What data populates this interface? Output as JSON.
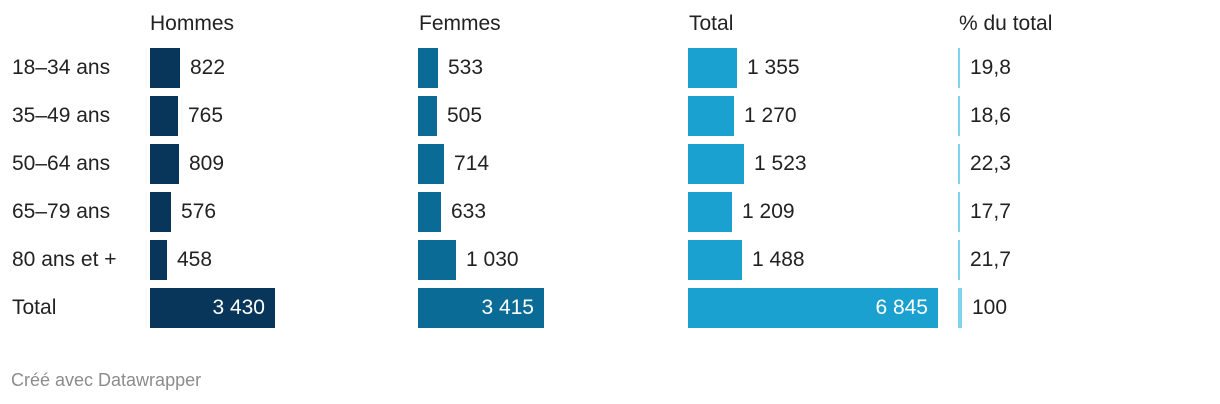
{
  "chart_data": {
    "type": "table",
    "columns": [
      {
        "header": "Hommes",
        "color": "#08365b"
      },
      {
        "header": "Femmes",
        "color": "#0a6c96"
      },
      {
        "header": "Total",
        "color": "#1ba1cf"
      },
      {
        "header": "% du total",
        "color": "#7dd3f0"
      }
    ],
    "rows": [
      {
        "label": "18–34 ans",
        "values": [
          822,
          533,
          1355,
          19.8
        ],
        "display": [
          "822",
          "533",
          "1 355",
          "19,8"
        ]
      },
      {
        "label": "35–49 ans",
        "values": [
          765,
          505,
          1270,
          18.6
        ],
        "display": [
          "765",
          "505",
          "1 270",
          "18,6"
        ]
      },
      {
        "label": "50–64 ans",
        "values": [
          809,
          714,
          1523,
          22.3
        ],
        "display": [
          "809",
          "714",
          "1 523",
          "22,3"
        ]
      },
      {
        "label": "65–79 ans",
        "values": [
          576,
          633,
          1209,
          17.7
        ],
        "display": [
          "576",
          "633",
          "1 209",
          "17,7"
        ]
      },
      {
        "label": "80 ans et +",
        "values": [
          458,
          1030,
          1488,
          21.7
        ],
        "display": [
          "458",
          "1 030",
          "1 488",
          "21,7"
        ]
      },
      {
        "label": "Total",
        "values": [
          3430,
          3415,
          6845,
          100
        ],
        "display": [
          "3 430",
          "3 415",
          "6 845",
          "100"
        ]
      }
    ]
  },
  "credit": "Créé avec Datawrapper"
}
